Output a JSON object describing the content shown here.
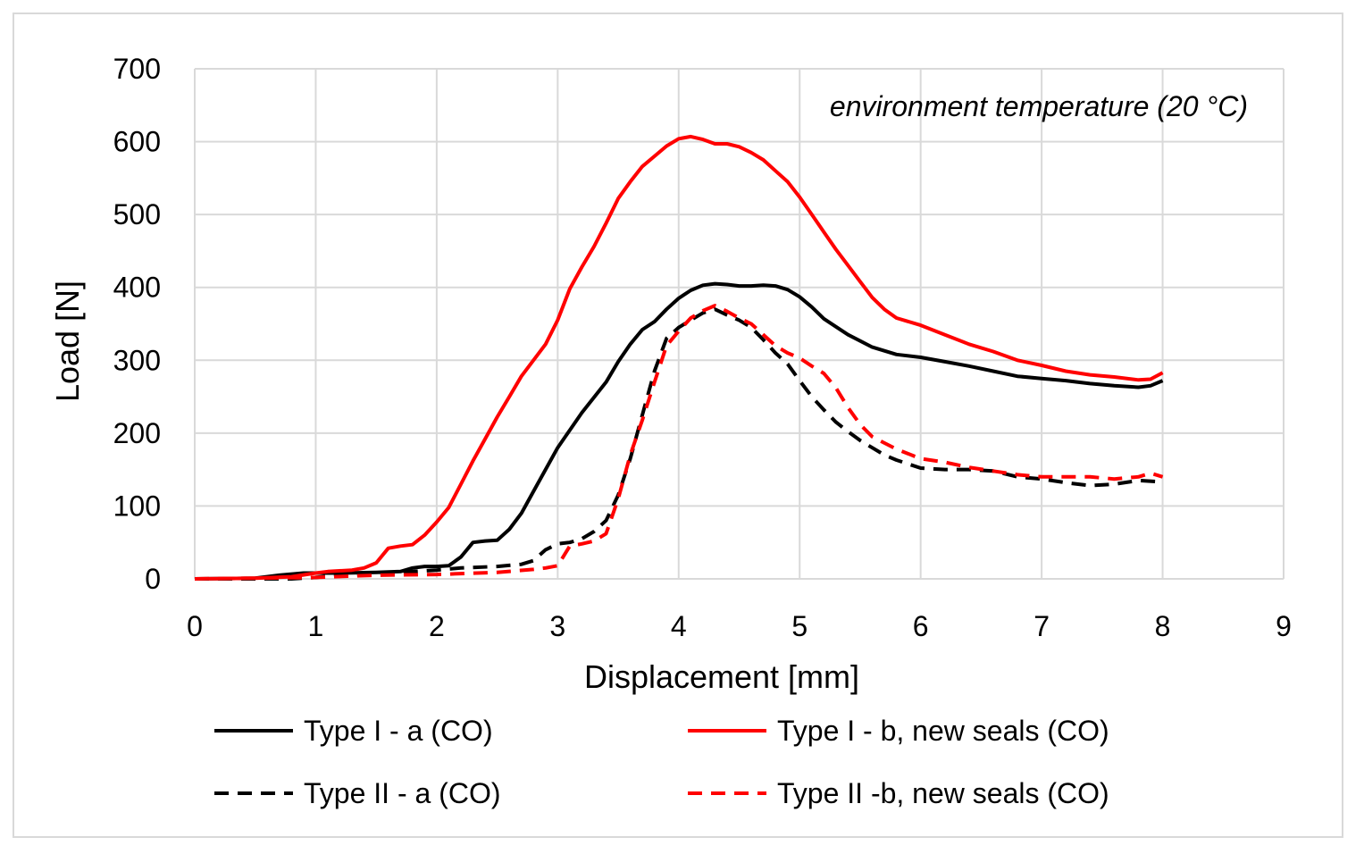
{
  "chart_data": {
    "type": "line",
    "title": "",
    "xlabel": "Displacement [mm]",
    "ylabel": "Load [N]",
    "xlim": [
      0,
      9
    ],
    "ylim": [
      0,
      700
    ],
    "xticks": [
      0,
      1,
      2,
      3,
      4,
      5,
      6,
      7,
      8,
      9
    ],
    "yticks": [
      0,
      100,
      200,
      300,
      400,
      500,
      600,
      700
    ],
    "grid": true,
    "legend_position": "bottom",
    "annotation": "environment temperature (20 °C)",
    "series": [
      {
        "name": "Type I - a (CO)",
        "color": "#000000",
        "dash": "solid",
        "points": [
          [
            0,
            0
          ],
          [
            0.5,
            1
          ],
          [
            0.7,
            5
          ],
          [
            0.9,
            8
          ],
          [
            1.0,
            8
          ],
          [
            1.2,
            8
          ],
          [
            1.5,
            9
          ],
          [
            1.7,
            10
          ],
          [
            1.8,
            15
          ],
          [
            1.9,
            17
          ],
          [
            2.0,
            17
          ],
          [
            2.1,
            18
          ],
          [
            2.2,
            30
          ],
          [
            2.3,
            50
          ],
          [
            2.4,
            52
          ],
          [
            2.5,
            53
          ],
          [
            2.6,
            68
          ],
          [
            2.7,
            90
          ],
          [
            2.8,
            120
          ],
          [
            3.0,
            180
          ],
          [
            3.2,
            228
          ],
          [
            3.4,
            270
          ],
          [
            3.5,
            298
          ],
          [
            3.6,
            322
          ],
          [
            3.7,
            342
          ],
          [
            3.8,
            353
          ],
          [
            3.9,
            370
          ],
          [
            4.0,
            385
          ],
          [
            4.1,
            396
          ],
          [
            4.2,
            403
          ],
          [
            4.3,
            405
          ],
          [
            4.4,
            404
          ],
          [
            4.5,
            402
          ],
          [
            4.6,
            402
          ],
          [
            4.7,
            403
          ],
          [
            4.8,
            402
          ],
          [
            4.9,
            397
          ],
          [
            5.0,
            387
          ],
          [
            5.1,
            373
          ],
          [
            5.2,
            357
          ],
          [
            5.3,
            346
          ],
          [
            5.4,
            335
          ],
          [
            5.6,
            318
          ],
          [
            5.8,
            308
          ],
          [
            6.0,
            304
          ],
          [
            6.2,
            298
          ],
          [
            6.4,
            292
          ],
          [
            6.6,
            285
          ],
          [
            6.8,
            278
          ],
          [
            7.0,
            275
          ],
          [
            7.2,
            272
          ],
          [
            7.4,
            268
          ],
          [
            7.6,
            265
          ],
          [
            7.8,
            263
          ],
          [
            7.9,
            265
          ],
          [
            8.0,
            272
          ]
        ]
      },
      {
        "name": "Type I - b, new seals (CO)",
        "color": "#ff0000",
        "dash": "solid",
        "points": [
          [
            0,
            0
          ],
          [
            0.5,
            1
          ],
          [
            0.8,
            3
          ],
          [
            1.0,
            8
          ],
          [
            1.1,
            10
          ],
          [
            1.3,
            12
          ],
          [
            1.4,
            15
          ],
          [
            1.5,
            22
          ],
          [
            1.6,
            42
          ],
          [
            1.7,
            45
          ],
          [
            1.8,
            47
          ],
          [
            1.9,
            60
          ],
          [
            2.0,
            78
          ],
          [
            2.1,
            98
          ],
          [
            2.2,
            130
          ],
          [
            2.3,
            162
          ],
          [
            2.4,
            192
          ],
          [
            2.5,
            222
          ],
          [
            2.6,
            250
          ],
          [
            2.7,
            278
          ],
          [
            2.8,
            300
          ],
          [
            2.9,
            322
          ],
          [
            3.0,
            355
          ],
          [
            3.1,
            398
          ],
          [
            3.2,
            428
          ],
          [
            3.3,
            456
          ],
          [
            3.4,
            488
          ],
          [
            3.5,
            522
          ],
          [
            3.6,
            545
          ],
          [
            3.7,
            566
          ],
          [
            3.8,
            580
          ],
          [
            3.9,
            594
          ],
          [
            4.0,
            604
          ],
          [
            4.1,
            607
          ],
          [
            4.2,
            603
          ],
          [
            4.3,
            597
          ],
          [
            4.4,
            597
          ],
          [
            4.5,
            593
          ],
          [
            4.6,
            585
          ],
          [
            4.7,
            575
          ],
          [
            4.8,
            560
          ],
          [
            4.9,
            545
          ],
          [
            5.0,
            524
          ],
          [
            5.1,
            500
          ],
          [
            5.2,
            476
          ],
          [
            5.3,
            452
          ],
          [
            5.4,
            430
          ],
          [
            5.5,
            408
          ],
          [
            5.6,
            386
          ],
          [
            5.7,
            370
          ],
          [
            5.8,
            358
          ],
          [
            6.0,
            348
          ],
          [
            6.2,
            335
          ],
          [
            6.4,
            322
          ],
          [
            6.6,
            312
          ],
          [
            6.8,
            300
          ],
          [
            7.0,
            293
          ],
          [
            7.2,
            285
          ],
          [
            7.4,
            280
          ],
          [
            7.6,
            277
          ],
          [
            7.8,
            273
          ],
          [
            7.9,
            274
          ],
          [
            8.0,
            283
          ]
        ]
      },
      {
        "name": "Type II - a (CO)",
        "color": "#000000",
        "dash": "dashed",
        "points": [
          [
            0,
            0
          ],
          [
            0.8,
            0
          ],
          [
            1.0,
            2
          ],
          [
            1.2,
            5
          ],
          [
            1.5,
            7
          ],
          [
            1.8,
            10
          ],
          [
            2.0,
            12
          ],
          [
            2.2,
            15
          ],
          [
            2.5,
            17
          ],
          [
            2.7,
            20
          ],
          [
            2.8,
            25
          ],
          [
            2.9,
            40
          ],
          [
            3.0,
            48
          ],
          [
            3.1,
            50
          ],
          [
            3.2,
            55
          ],
          [
            3.3,
            65
          ],
          [
            3.4,
            80
          ],
          [
            3.5,
            115
          ],
          [
            3.6,
            165
          ],
          [
            3.7,
            225
          ],
          [
            3.8,
            285
          ],
          [
            3.9,
            330
          ],
          [
            4.0,
            345
          ],
          [
            4.1,
            355
          ],
          [
            4.2,
            365
          ],
          [
            4.3,
            370
          ],
          [
            4.4,
            362
          ],
          [
            4.5,
            355
          ],
          [
            4.6,
            345
          ],
          [
            4.7,
            328
          ],
          [
            4.8,
            310
          ],
          [
            4.9,
            295
          ],
          [
            5.0,
            272
          ],
          [
            5.1,
            250
          ],
          [
            5.2,
            232
          ],
          [
            5.3,
            215
          ],
          [
            5.4,
            202
          ],
          [
            5.5,
            190
          ],
          [
            5.6,
            180
          ],
          [
            5.7,
            170
          ],
          [
            5.8,
            163
          ],
          [
            6.0,
            152
          ],
          [
            6.2,
            150
          ],
          [
            6.4,
            150
          ],
          [
            6.6,
            148
          ],
          [
            6.8,
            140
          ],
          [
            7.0,
            137
          ],
          [
            7.2,
            132
          ],
          [
            7.4,
            128
          ],
          [
            7.6,
            130
          ],
          [
            7.8,
            135
          ],
          [
            8.0,
            133
          ]
        ]
      },
      {
        "name": "Type II -b, new seals (CO)",
        "color": "#ff0000",
        "dash": "dashed",
        "points": [
          [
            0,
            0
          ],
          [
            1.0,
            2
          ],
          [
            1.5,
            5
          ],
          [
            2.0,
            6
          ],
          [
            2.5,
            9
          ],
          [
            2.8,
            13
          ],
          [
            2.9,
            15
          ],
          [
            3.0,
            18
          ],
          [
            3.1,
            45
          ],
          [
            3.2,
            48
          ],
          [
            3.3,
            52
          ],
          [
            3.4,
            62
          ],
          [
            3.5,
            110
          ],
          [
            3.6,
            170
          ],
          [
            3.7,
            218
          ],
          [
            3.8,
            270
          ],
          [
            3.9,
            320
          ],
          [
            4.0,
            340
          ],
          [
            4.1,
            358
          ],
          [
            4.2,
            368
          ],
          [
            4.3,
            375
          ],
          [
            4.4,
            367
          ],
          [
            4.5,
            358
          ],
          [
            4.6,
            350
          ],
          [
            4.7,
            335
          ],
          [
            4.8,
            320
          ],
          [
            4.9,
            310
          ],
          [
            5.0,
            303
          ],
          [
            5.1,
            292
          ],
          [
            5.2,
            282
          ],
          [
            5.3,
            262
          ],
          [
            5.4,
            235
          ],
          [
            5.5,
            212
          ],
          [
            5.6,
            195
          ],
          [
            5.8,
            178
          ],
          [
            6.0,
            165
          ],
          [
            6.2,
            160
          ],
          [
            6.4,
            153
          ],
          [
            6.6,
            148
          ],
          [
            6.8,
            143
          ],
          [
            7.0,
            140
          ],
          [
            7.2,
            140
          ],
          [
            7.4,
            140
          ],
          [
            7.6,
            137
          ],
          [
            7.8,
            140
          ],
          [
            7.9,
            145
          ],
          [
            8.0,
            140
          ]
        ]
      }
    ]
  }
}
